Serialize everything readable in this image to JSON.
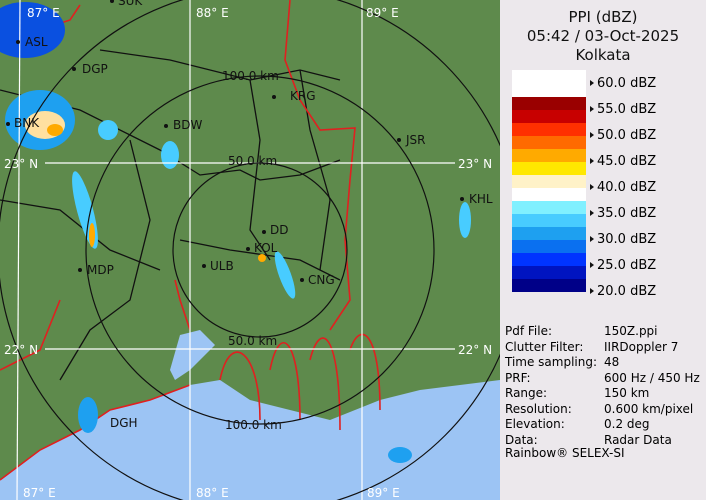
{
  "header": {
    "product": "PPI (dBZ)",
    "datetime": "05:42 / 03-Oct-2025",
    "site": "Kolkata"
  },
  "legend": {
    "labels": [
      "60.0 dBZ",
      "55.0 dBZ",
      "50.0 dBZ",
      "45.0 dBZ",
      "40.0 dBZ",
      "35.0 dBZ",
      "30.0 dBZ",
      "25.0 dBZ",
      "20.0 dBZ"
    ],
    "colors": [
      "#9a0000",
      "#c80000",
      "#ff3000",
      "#ff6a00",
      "#ffaa00",
      "#ffe800",
      "#fff2c8",
      "#ffffff",
      "#80f0ff",
      "#48ccff",
      "#1ea0f0",
      "#0a70f0",
      "#0034ff",
      "#0014c0",
      "#000088"
    ]
  },
  "info": [
    {
      "key": "Pdf File:",
      "value": "150Z.ppi"
    },
    {
      "key": "Clutter Filter:",
      "value": "IIRDoppler 7"
    },
    {
      "key": "Time sampling:",
      "value": "48"
    },
    {
      "key": "PRF:",
      "value": "600 Hz / 450 Hz"
    },
    {
      "key": "Range:",
      "value": "150 km"
    },
    {
      "key": "Resolution:",
      "value": "0.600 km/pixel"
    },
    {
      "key": "Elevation:",
      "value": "0.2 deg"
    },
    {
      "key": "Data:",
      "value": "Radar Data"
    }
  ],
  "credit": "Rainbow® SELEX-SI",
  "map": {
    "grid": {
      "lon_top": [
        "87° E",
        "88° E",
        "89° E"
      ],
      "lon_bottom": [
        "87° E",
        "88° E",
        "89° E"
      ],
      "lat_left": [
        "23° N",
        "22° N"
      ],
      "lat_right": [
        "23° N",
        "22° N"
      ]
    },
    "rings": [
      "100.0 km",
      "50.0 km",
      "50.0 km",
      "100.0 km"
    ],
    "cities": [
      "SUK",
      "ASL",
      "DGP",
      "BNK",
      "BDW",
      "KRG",
      "JSR",
      "KHL",
      "DD",
      "KOL",
      "ULB",
      "CNG",
      "MDP",
      "DGH"
    ],
    "colors": {
      "land": "#5e8a4c",
      "sea": "#9cc4f4",
      "state_border": "#e02020",
      "district_border": "#111111"
    }
  }
}
